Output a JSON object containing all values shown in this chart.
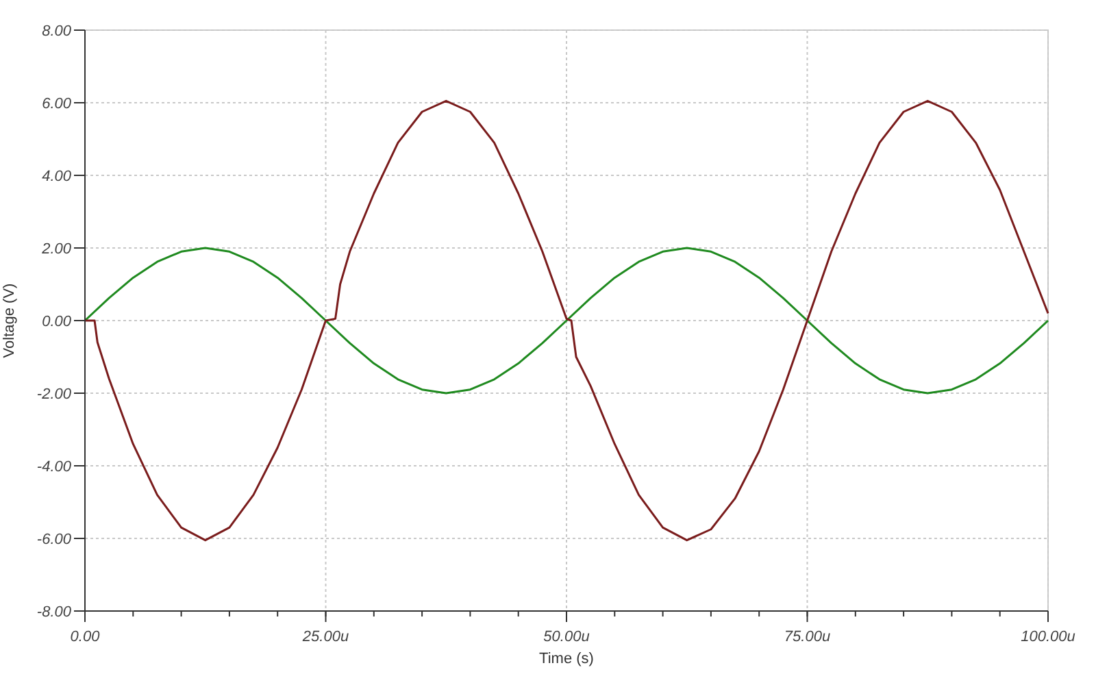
{
  "chart_data": {
    "type": "line",
    "xlabel": "Time (s)",
    "ylabel": "Voltage (V)",
    "xlim": [
      0,
      100
    ],
    "xticks": [
      {
        "value": 0,
        "label": "0.00"
      },
      {
        "value": 25,
        "label": "25.00u"
      },
      {
        "value": 50,
        "label": "50.00u"
      },
      {
        "value": 75,
        "label": "75.00u"
      },
      {
        "value": 100,
        "label": "100.00u"
      }
    ],
    "ylim": [
      -8,
      8
    ],
    "yticks": [
      {
        "value": -8,
        "label": "-8.00"
      },
      {
        "value": -6,
        "label": "-6.00"
      },
      {
        "value": -4,
        "label": "-4.00"
      },
      {
        "value": -2,
        "label": "-2.00"
      },
      {
        "value": 0,
        "label": "0.00"
      },
      {
        "value": 2,
        "label": "2.00"
      },
      {
        "value": 4,
        "label": "4.00"
      },
      {
        "value": 6,
        "label": "6.00"
      },
      {
        "value": 8,
        "label": "8.00"
      }
    ],
    "grid": true,
    "line_style": "solid",
    "marker": "none",
    "series": [
      {
        "color": "#1f8a1f",
        "x": [
          0,
          2.5,
          5,
          7.5,
          10,
          12.5,
          15,
          17.5,
          20,
          22.5,
          25,
          27.5,
          30,
          32.5,
          35,
          37.5,
          40,
          42.5,
          45,
          47.5,
          50,
          52.5,
          55,
          57.5,
          60,
          62.5,
          65,
          67.5,
          70,
          72.5,
          75,
          77.5,
          80,
          82.5,
          85,
          87.5,
          90,
          92.5,
          95,
          97.5,
          100
        ],
        "values": [
          0,
          0.62,
          1.18,
          1.62,
          1.9,
          2,
          1.9,
          1.62,
          1.18,
          0.62,
          0,
          -0.62,
          -1.18,
          -1.62,
          -1.9,
          -2,
          -1.9,
          -1.62,
          -1.18,
          -0.62,
          0,
          0.62,
          1.18,
          1.62,
          1.9,
          2,
          1.9,
          1.62,
          1.18,
          0.62,
          0,
          -0.62,
          -1.18,
          -1.62,
          -1.9,
          -2,
          -1.9,
          -1.62,
          -1.18,
          -0.62,
          0
        ]
      },
      {
        "color": "#7a1c1c",
        "x": [
          0,
          1,
          1.3,
          2.5,
          5,
          7.5,
          10,
          12.5,
          15,
          17.5,
          20,
          22.5,
          25,
          26,
          26.5,
          27.5,
          30,
          32.5,
          35,
          37.5,
          40,
          42.5,
          45,
          47.5,
          50,
          50.5,
          51,
          52.5,
          55,
          57.5,
          60,
          62.5,
          65,
          67.5,
          70,
          72.5,
          75,
          77.5,
          80,
          82.5,
          85,
          87.5,
          90,
          92.5,
          95,
          97.5,
          100
        ],
        "values": [
          0,
          0,
          -0.6,
          -1.6,
          -3.4,
          -4.8,
          -5.7,
          -6.05,
          -5.7,
          -4.8,
          -3.5,
          -1.9,
          0,
          0.05,
          1,
          1.9,
          3.5,
          4.9,
          5.75,
          6.05,
          5.75,
          4.9,
          3.5,
          1.9,
          0.05,
          0,
          -1,
          -1.8,
          -3.4,
          -4.8,
          -5.7,
          -6.05,
          -5.75,
          -4.9,
          -3.6,
          -1.9,
          0,
          1.9,
          3.5,
          4.9,
          5.75,
          6.05,
          5.75,
          4.9,
          3.6,
          1.9,
          0.2
        ]
      }
    ]
  }
}
